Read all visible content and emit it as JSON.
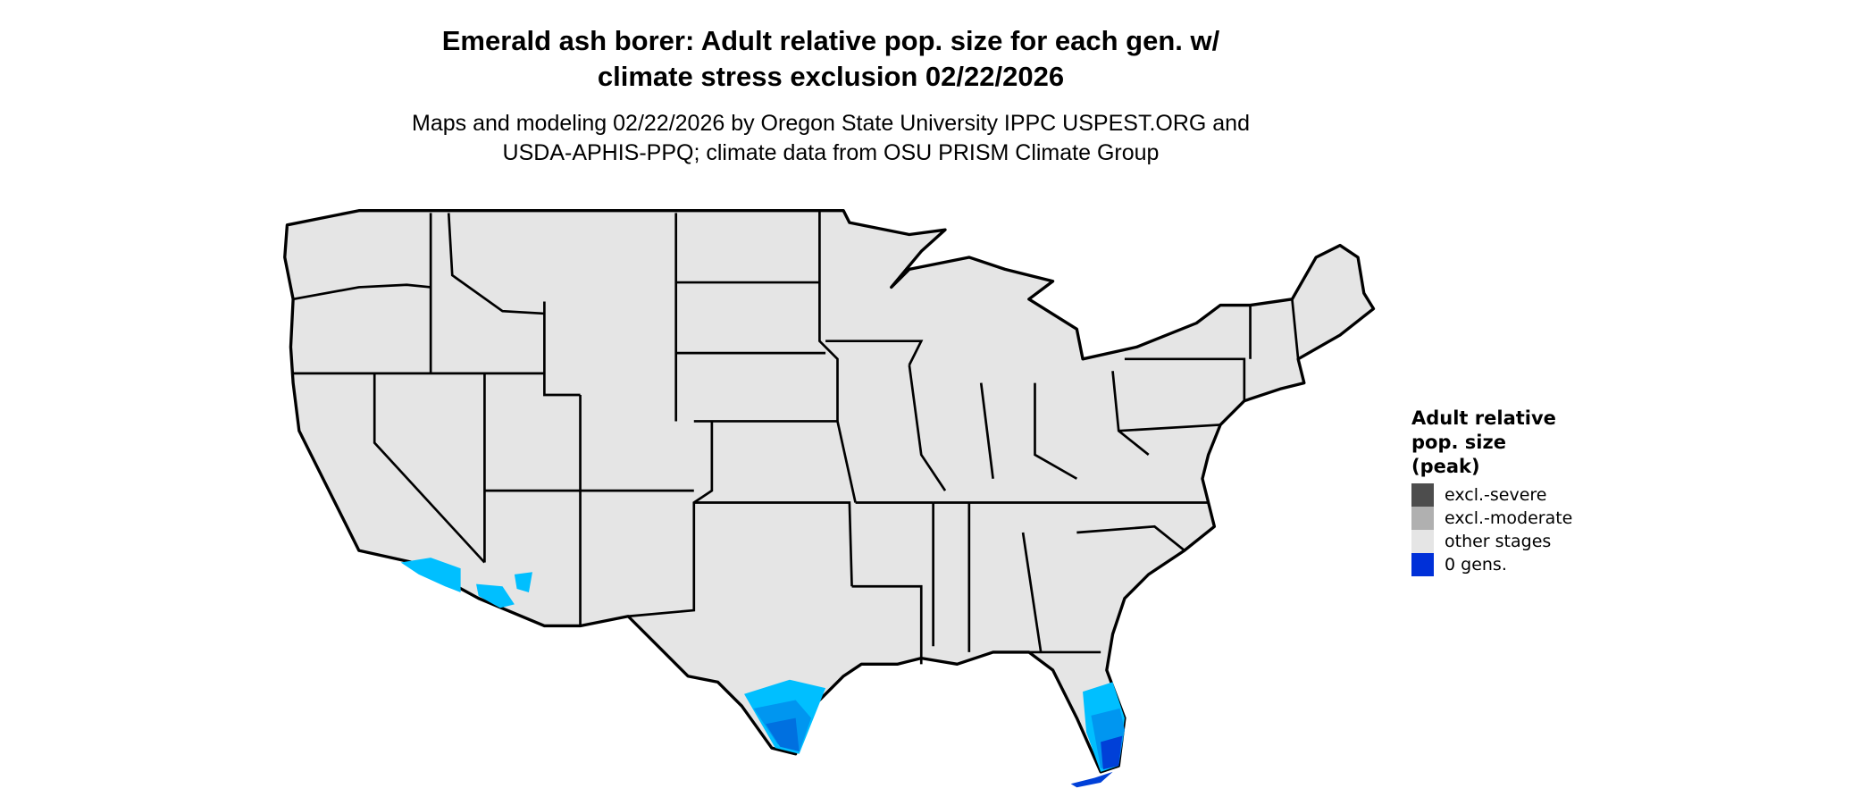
{
  "title_line1": "Emerald ash borer: Adult relative pop. size for each gen. w/",
  "title_line2": "climate stress exclusion 02/22/2026",
  "subtitle_line1": "Maps and modeling 02/22/2026 by Oregon State University IPPC USPEST.ORG and",
  "subtitle_line2": "USDA-APHIS-PPQ; climate data from OSU PRISM Climate Group",
  "legend": {
    "title_line1": "Adult relative",
    "title_line2": "pop. size",
    "title_line3": "(peak)",
    "items": [
      {
        "label": "excl.-severe",
        "color": "#4d4d4d"
      },
      {
        "label": "excl.-moderate",
        "color": "#b0b0b0"
      },
      {
        "label": "other stages",
        "color": "#e5e5e5"
      },
      {
        "label": "0 gens.",
        "color": "#0030d8"
      }
    ]
  },
  "colors": {
    "land": "#e5e5e5",
    "border": "#000000",
    "blue_shades": [
      "#00bfff",
      "#0096f0",
      "#0070e0",
      "#0040d8"
    ]
  }
}
